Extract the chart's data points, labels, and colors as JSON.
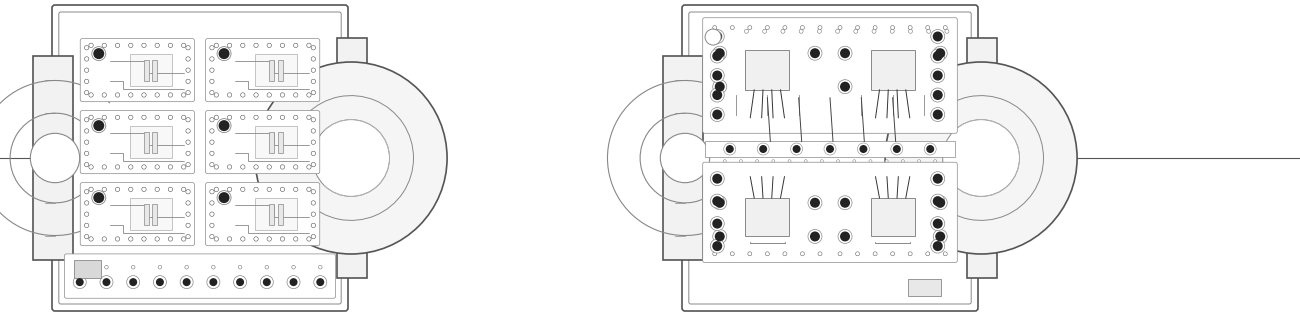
{
  "fig_width": 13.0,
  "fig_height": 3.16,
  "dpi": 100,
  "bg_color": "#ffffff",
  "line_color": "#555555",
  "mid_gray": "#888888",
  "light_gray": "#bbbbbb",
  "very_light": "#f0f0f0",
  "dark": "#333333",
  "module_bg": "#ffffff",
  "lw_outer": 1.2,
  "lw_inner": 0.7,
  "lw_thin": 0.5,
  "lw_thick": 1.5
}
